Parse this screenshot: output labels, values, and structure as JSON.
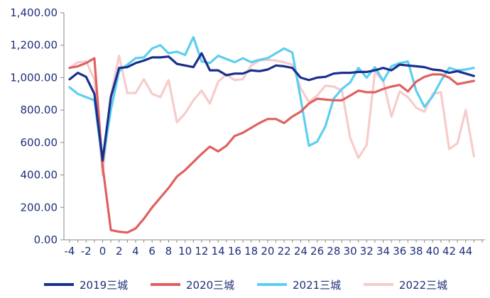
{
  "chart_data": {
    "type": "line",
    "title": "",
    "xlabel": "",
    "ylabel": "",
    "ylim": [
      0,
      1400
    ],
    "xlim": [
      -4,
      46
    ],
    "y_ticks": [
      "0.00",
      "200.00",
      "400.00",
      "600.00",
      "800.00",
      "1,000.00",
      "1,200.00",
      "1,400.00"
    ],
    "x_ticks": [
      "-4",
      "-2",
      "0",
      "2",
      "4",
      "6",
      "8",
      "10",
      "12",
      "14",
      "16",
      "18",
      "20",
      "22",
      "24",
      "26",
      "28",
      "30",
      "32",
      "34",
      "36",
      "38",
      "40",
      "42",
      "44"
    ],
    "grid": false,
    "legend_position": "bottom",
    "x": [
      -4,
      -3,
      -2,
      -1,
      0,
      1,
      2,
      3,
      4,
      5,
      6,
      7,
      8,
      9,
      10,
      11,
      12,
      13,
      14,
      15,
      16,
      17,
      18,
      19,
      20,
      21,
      22,
      23,
      24,
      25,
      26,
      27,
      28,
      29,
      30,
      31,
      32,
      33,
      34,
      35,
      36,
      37,
      38,
      39,
      40,
      41,
      42,
      43,
      44,
      45
    ],
    "series": [
      {
        "name": "2019三城",
        "color": "#1a2f8c",
        "values": [
          990,
          1030,
          1005,
          900,
          490,
          880,
          1060,
          1065,
          1090,
          1105,
          1125,
          1125,
          1130,
          1085,
          1075,
          1065,
          1150,
          1045,
          1045,
          1015,
          1025,
          1025,
          1045,
          1040,
          1050,
          1075,
          1070,
          1060,
          1000,
          985,
          1000,
          1005,
          1025,
          1030,
          1030,
          1035,
          1035,
          1045,
          1060,
          1045,
          1080,
          1075,
          1070,
          1065,
          1050,
          1045,
          1030,
          1040,
          1025,
          1010
        ]
      },
      {
        "name": "2020三城",
        "color": "#e06060",
        "values": [
          1060,
          1070,
          1090,
          1120,
          455,
          60,
          50,
          45,
          70,
          130,
          200,
          260,
          320,
          390,
          430,
          480,
          530,
          575,
          545,
          580,
          640,
          660,
          690,
          720,
          745,
          745,
          720,
          760,
          790,
          840,
          870,
          865,
          860,
          860,
          890,
          920,
          910,
          910,
          930,
          945,
          955,
          915,
          975,
          1005,
          1020,
          1020,
          1000,
          960,
          970,
          980
        ]
      },
      {
        "name": "2021三城",
        "color": "#5bcff0",
        "values": [
          940,
          900,
          880,
          860,
          480,
          800,
          1040,
          1080,
          1120,
          1125,
          1180,
          1200,
          1150,
          1160,
          1140,
          1250,
          1100,
          1090,
          1135,
          1115,
          1095,
          1120,
          1095,
          1110,
          1120,
          1150,
          1180,
          1155,
          870,
          580,
          605,
          700,
          870,
          930,
          970,
          1060,
          1000,
          1065,
          980,
          1070,
          1090,
          1100,
          920,
          820,
          885,
          980,
          1060,
          1045,
          1050,
          1060
        ]
      },
      {
        "name": "2022三城",
        "color": "#f6cccc",
        "values": [
          1060,
          1095,
          1100,
          990,
          400,
          890,
          1135,
          905,
          905,
          990,
          900,
          880,
          985,
          725,
          780,
          860,
          920,
          840,
          975,
          1020,
          985,
          990,
          1075,
          1105,
          1110,
          1105,
          1095,
          1080,
          935,
          850,
          890,
          950,
          945,
          920,
          630,
          505,
          585,
          1035,
          980,
          760,
          915,
          880,
          815,
          790,
          900,
          910,
          560,
          595,
          800,
          515
        ]
      }
    ]
  }
}
